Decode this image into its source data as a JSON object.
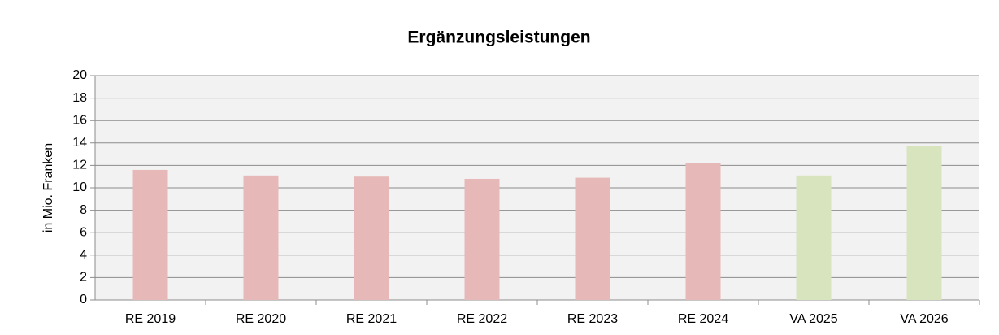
{
  "chart_data": {
    "type": "bar",
    "title": "Ergänzungsleistungen",
    "y_label": "in Mio. Franken",
    "categories": [
      "RE 2019",
      "RE 2020",
      "RE 2021",
      "RE 2022",
      "RE 2023",
      "RE 2024",
      "VA 2025",
      "VA 2026"
    ],
    "values": [
      11.6,
      11.1,
      11.0,
      10.8,
      10.9,
      12.2,
      11.1,
      13.7
    ],
    "colors": [
      "#e6b8b7",
      "#e6b8b7",
      "#e6b8b7",
      "#e6b8b7",
      "#e6b8b7",
      "#e6b8b7",
      "#d7e4bd",
      "#d7e4bd"
    ],
    "ylim": [
      0,
      20
    ],
    "yticks": [
      0,
      2,
      4,
      6,
      8,
      10,
      12,
      14,
      16,
      18,
      20
    ],
    "grid": true
  }
}
